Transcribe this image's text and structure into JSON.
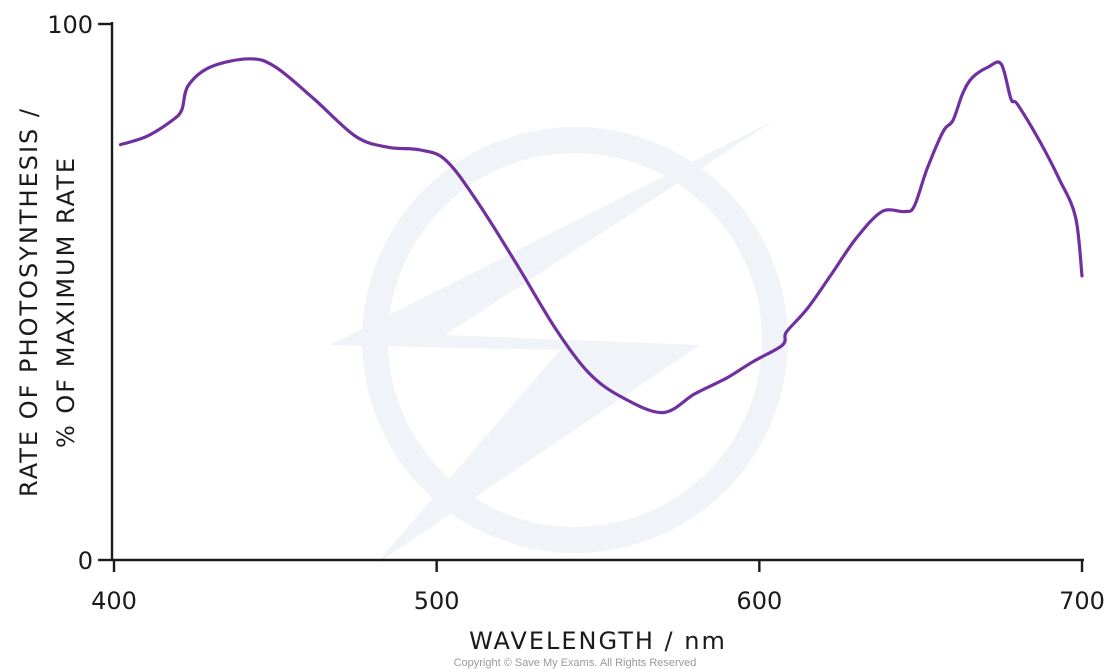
{
  "chart_data": {
    "type": "line",
    "title": "",
    "xlabel": "WAVELENGTH / nm",
    "ylabel_lines": [
      "RATE OF PHOTOSYNTHESIS /",
      "% OF MAXIMUM RATE"
    ],
    "xlim": [
      400,
      700
    ],
    "ylim": [
      0,
      100
    ],
    "xticks": [
      400,
      500,
      600,
      700
    ],
    "yticks": [
      0,
      100
    ],
    "grid": false,
    "line_color": "#7030a0",
    "series": [
      {
        "x": [
          402,
          410,
          418,
          421,
          423,
          430,
          442,
          450,
          462,
          475,
          485,
          495,
          503,
          513,
          525,
          537,
          547,
          557,
          570,
          580,
          590,
          598,
          607,
          608,
          609,
          615,
          622,
          630,
          638,
          645,
          648,
          652,
          657,
          660,
          663,
          666,
          671,
          675,
          678,
          680,
          687,
          693,
          698,
          700
        ],
        "y": [
          77.5,
          79,
          82,
          84,
          88.5,
          92,
          93.5,
          92,
          86,
          79,
          77,
          76.5,
          74.5,
          66.5,
          55,
          43,
          35,
          30.5,
          27.5,
          31,
          34,
          37,
          40,
          42,
          43,
          47,
          53,
          60,
          65,
          65,
          66,
          73,
          80,
          82,
          87,
          90,
          92,
          92.5,
          86,
          85,
          78,
          71,
          64,
          53
        ]
      }
    ]
  },
  "copyright": "Copyright © Save My Exams. All Rights Reserved"
}
